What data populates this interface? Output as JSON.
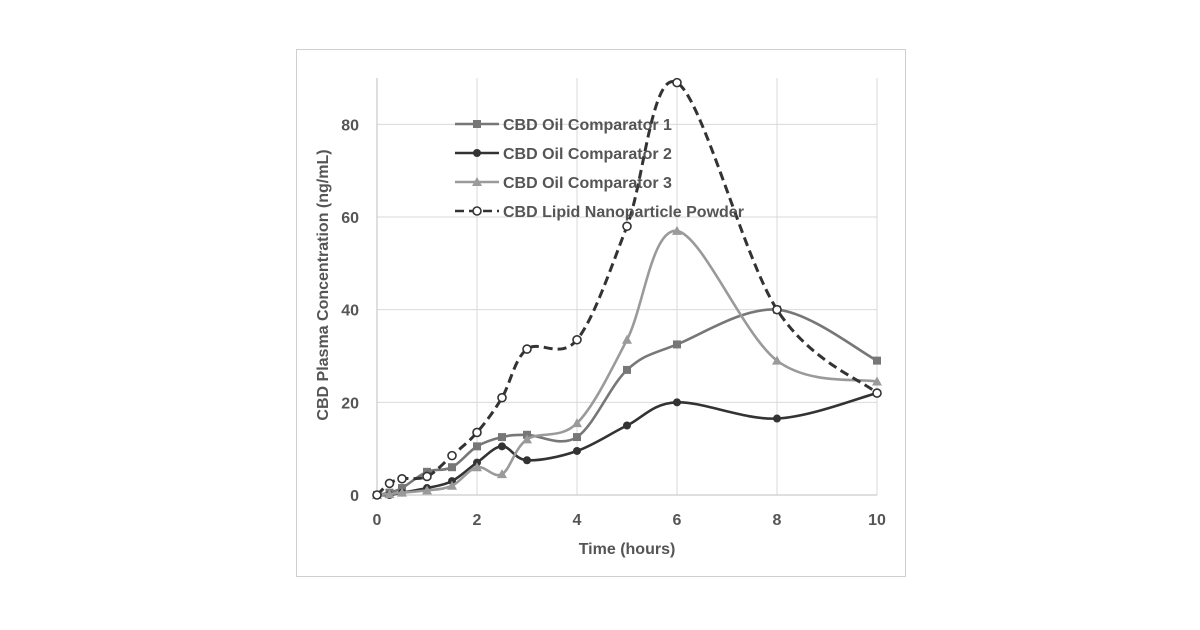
{
  "chart_data": {
    "type": "line",
    "title": "",
    "xlabel": "Time (hours)",
    "ylabel": "CBD Plasma Concentration (ng/mL)",
    "xlim": [
      0,
      10
    ],
    "ylim": [
      0,
      90
    ],
    "x_ticks": [
      0,
      2,
      4,
      6,
      8,
      10
    ],
    "y_ticks": [
      0,
      20,
      40,
      60,
      80
    ],
    "grid": true,
    "legend_position": "top-left inside",
    "series": [
      {
        "name": "CBD Oil Comparator 1",
        "color": "#777777",
        "marker": "square",
        "dash": false,
        "x": [
          0,
          0.25,
          0.5,
          1,
          1.5,
          2,
          2.5,
          3,
          4,
          5,
          6,
          8,
          10
        ],
        "y": [
          0,
          0.5,
          1.5,
          5,
          6,
          10.5,
          12.5,
          13,
          12.5,
          27,
          32.5,
          40,
          29
        ]
      },
      {
        "name": "CBD Oil Comparator 2",
        "color": "#333333",
        "marker": "circle",
        "dash": false,
        "x": [
          0,
          0.25,
          0.5,
          1,
          1.5,
          2,
          2.5,
          3,
          4,
          5,
          6,
          8,
          10
        ],
        "y": [
          0,
          0,
          0.5,
          1.5,
          3,
          7,
          10.5,
          7.5,
          9.5,
          15,
          20,
          16.5,
          22
        ]
      },
      {
        "name": "CBD Oil Comparator 3",
        "color": "#9a9a9a",
        "marker": "triangle",
        "dash": false,
        "x": [
          0,
          0.25,
          0.5,
          1,
          1.5,
          2,
          2.5,
          3,
          4,
          5,
          6,
          8,
          10
        ],
        "y": [
          0,
          0.2,
          0.5,
          1,
          2,
          6,
          4.5,
          12,
          15.5,
          33.5,
          57,
          29,
          24.5
        ]
      },
      {
        "name": "CBD Lipid Nanoparticle Powder",
        "color": "#333333",
        "marker": "open-circle",
        "dash": true,
        "x": [
          0,
          0.25,
          0.5,
          1,
          1.5,
          2,
          2.5,
          3,
          4,
          5,
          6,
          8,
          10
        ],
        "y": [
          0,
          2.5,
          3.5,
          4,
          8.5,
          13.5,
          21,
          31.5,
          33.5,
          58,
          89,
          40,
          22
        ]
      }
    ]
  }
}
